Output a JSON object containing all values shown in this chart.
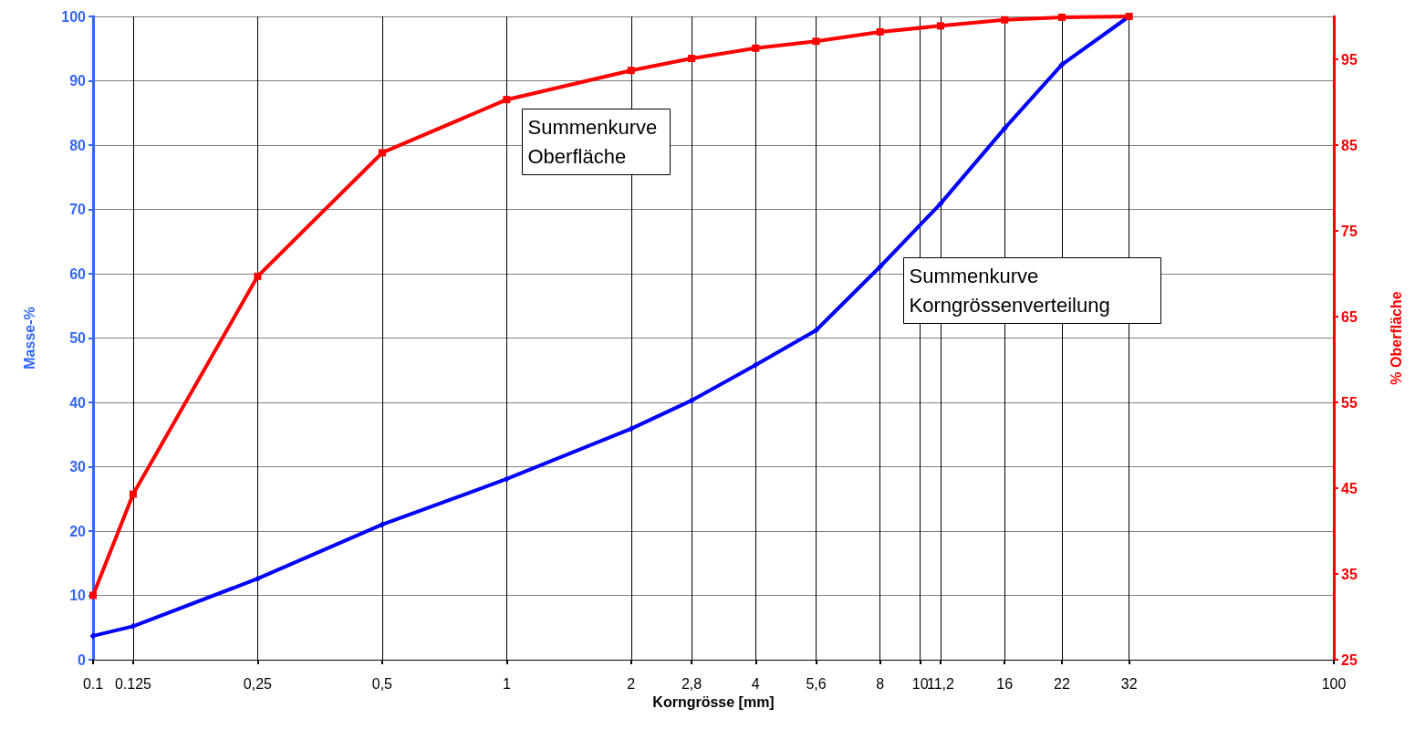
{
  "chart_data": {
    "type": "line",
    "xlabel": "Korngrösse [mm]",
    "ylabel": "Masse-%",
    "y2label": "% Oberfläche",
    "log": "x",
    "grid": true,
    "x": [
      0.1,
      0.125,
      0.25,
      0.5,
      1,
      2,
      2.8,
      4,
      5.6,
      8,
      11.2,
      16,
      22,
      32
    ],
    "xlim": [
      0.1,
      100
    ],
    "xticks": [
      0.1,
      0.125,
      {
        "value": 0.25,
        "label": "0,25"
      },
      {
        "value": 0.5,
        "label": "0,5"
      },
      1,
      2,
      {
        "value": 2.8,
        "label": "2,8"
      },
      4,
      {
        "value": 5.6,
        "label": "5,6"
      },
      8,
      10,
      {
        "value": 11.2,
        "label": "11,2"
      },
      16,
      22,
      32,
      100
    ],
    "ylim": [
      0,
      100
    ],
    "yticks": [
      0,
      10,
      20,
      30,
      40,
      50,
      60,
      70,
      80,
      90,
      100
    ],
    "y2lim": [
      25,
      100
    ],
    "y2ticks": [
      25,
      35,
      45,
      55,
      65,
      75,
      85,
      95
    ],
    "series": [
      {
        "color": "#0000ff",
        "marker": "diamond",
        "values": [
          3.7,
          5.2,
          12.6,
          21.0,
          28.1,
          35.9,
          40.3,
          45.8,
          51.2,
          61.1,
          70.9,
          82.6,
          92.5,
          100
        ]
      },
      {
        "color": "#ff0000",
        "marker": "square",
        "axis": "y2",
        "values": [
          32.5,
          44.3,
          69.7,
          84.1,
          90.3,
          93.7,
          95.1,
          96.3,
          97.1,
          98.2,
          98.9,
          99.6,
          99.9,
          100
        ]
      }
    ],
    "annotations": [
      "Summenkurve\nOberfläche",
      "Summenkurve\nKorngrössenverteilung"
    ]
  }
}
